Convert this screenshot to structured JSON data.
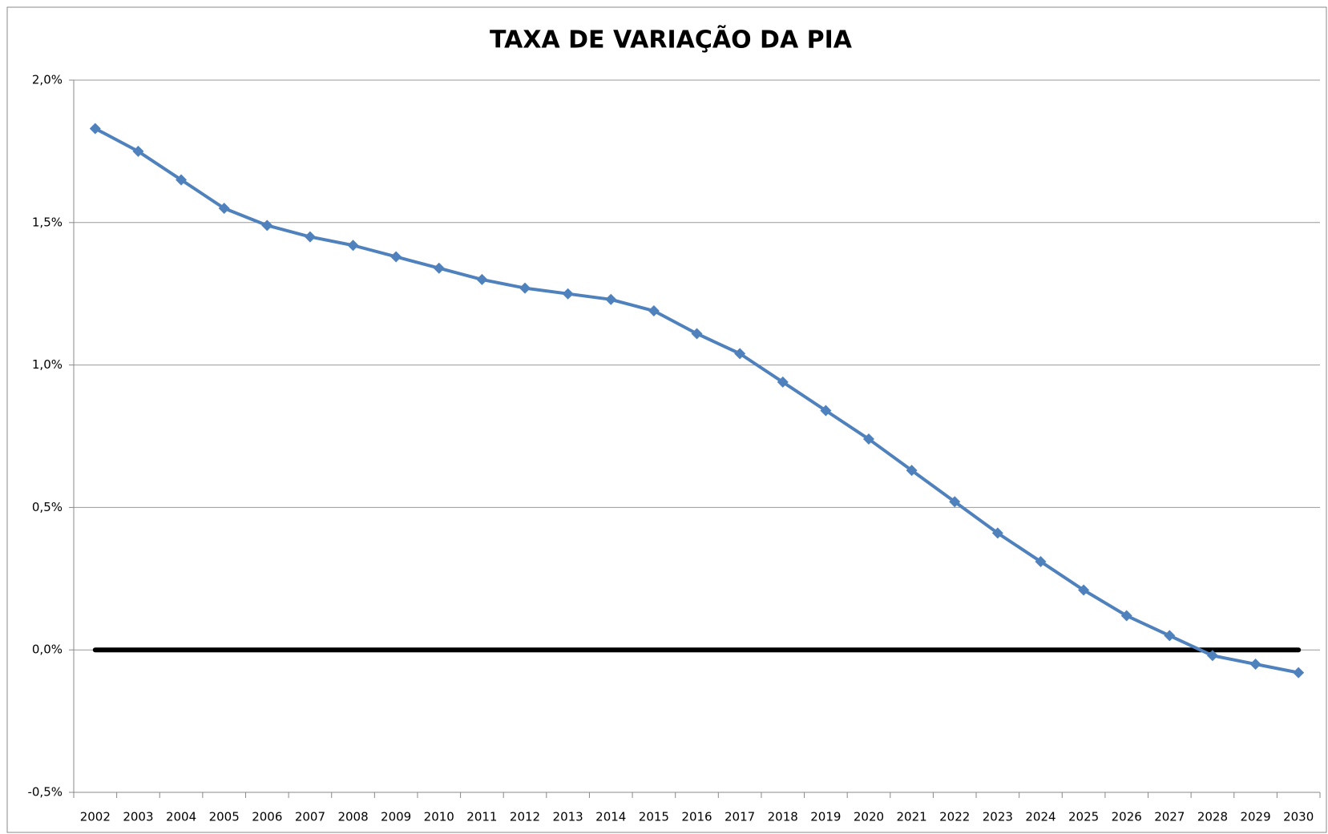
{
  "chart_data": {
    "type": "line",
    "title": "TAXA DE VARIAÇÃO DA PIA",
    "categories": [
      "2002",
      "2003",
      "2004",
      "2005",
      "2006",
      "2007",
      "2008",
      "2009",
      "2010",
      "2011",
      "2012",
      "2013",
      "2014",
      "2015",
      "2016",
      "2017",
      "2018",
      "2019",
      "2020",
      "2021",
      "2022",
      "2023",
      "2024",
      "2025",
      "2026",
      "2027",
      "2028",
      "2029",
      "2030"
    ],
    "series": [
      {
        "color": "#4f81bd",
        "values": [
          1.83,
          1.75,
          1.65,
          1.55,
          1.49,
          1.45,
          1.42,
          1.38,
          1.34,
          1.3,
          1.27,
          1.25,
          1.23,
          1.19,
          1.11,
          1.04,
          0.94,
          0.84,
          0.74,
          0.63,
          0.52,
          0.41,
          0.31,
          0.21,
          0.12,
          0.05,
          -0.02,
          -0.05,
          -0.08
        ]
      }
    ],
    "baseline": 0,
    "baseline_color": "#000000",
    "ylim": [
      -0.5,
      2.0
    ],
    "yticks": [
      {
        "value": -0.5,
        "label": "-0,5%"
      },
      {
        "value": 0,
        "label": "0,0%"
      },
      {
        "value": 0.5,
        "label": "0,5%"
      },
      {
        "value": 1.0,
        "label": "1,0%"
      },
      {
        "value": 1.5,
        "label": "1,5%"
      },
      {
        "value": 2.0,
        "label": "2,0%"
      }
    ],
    "grid": true
  }
}
